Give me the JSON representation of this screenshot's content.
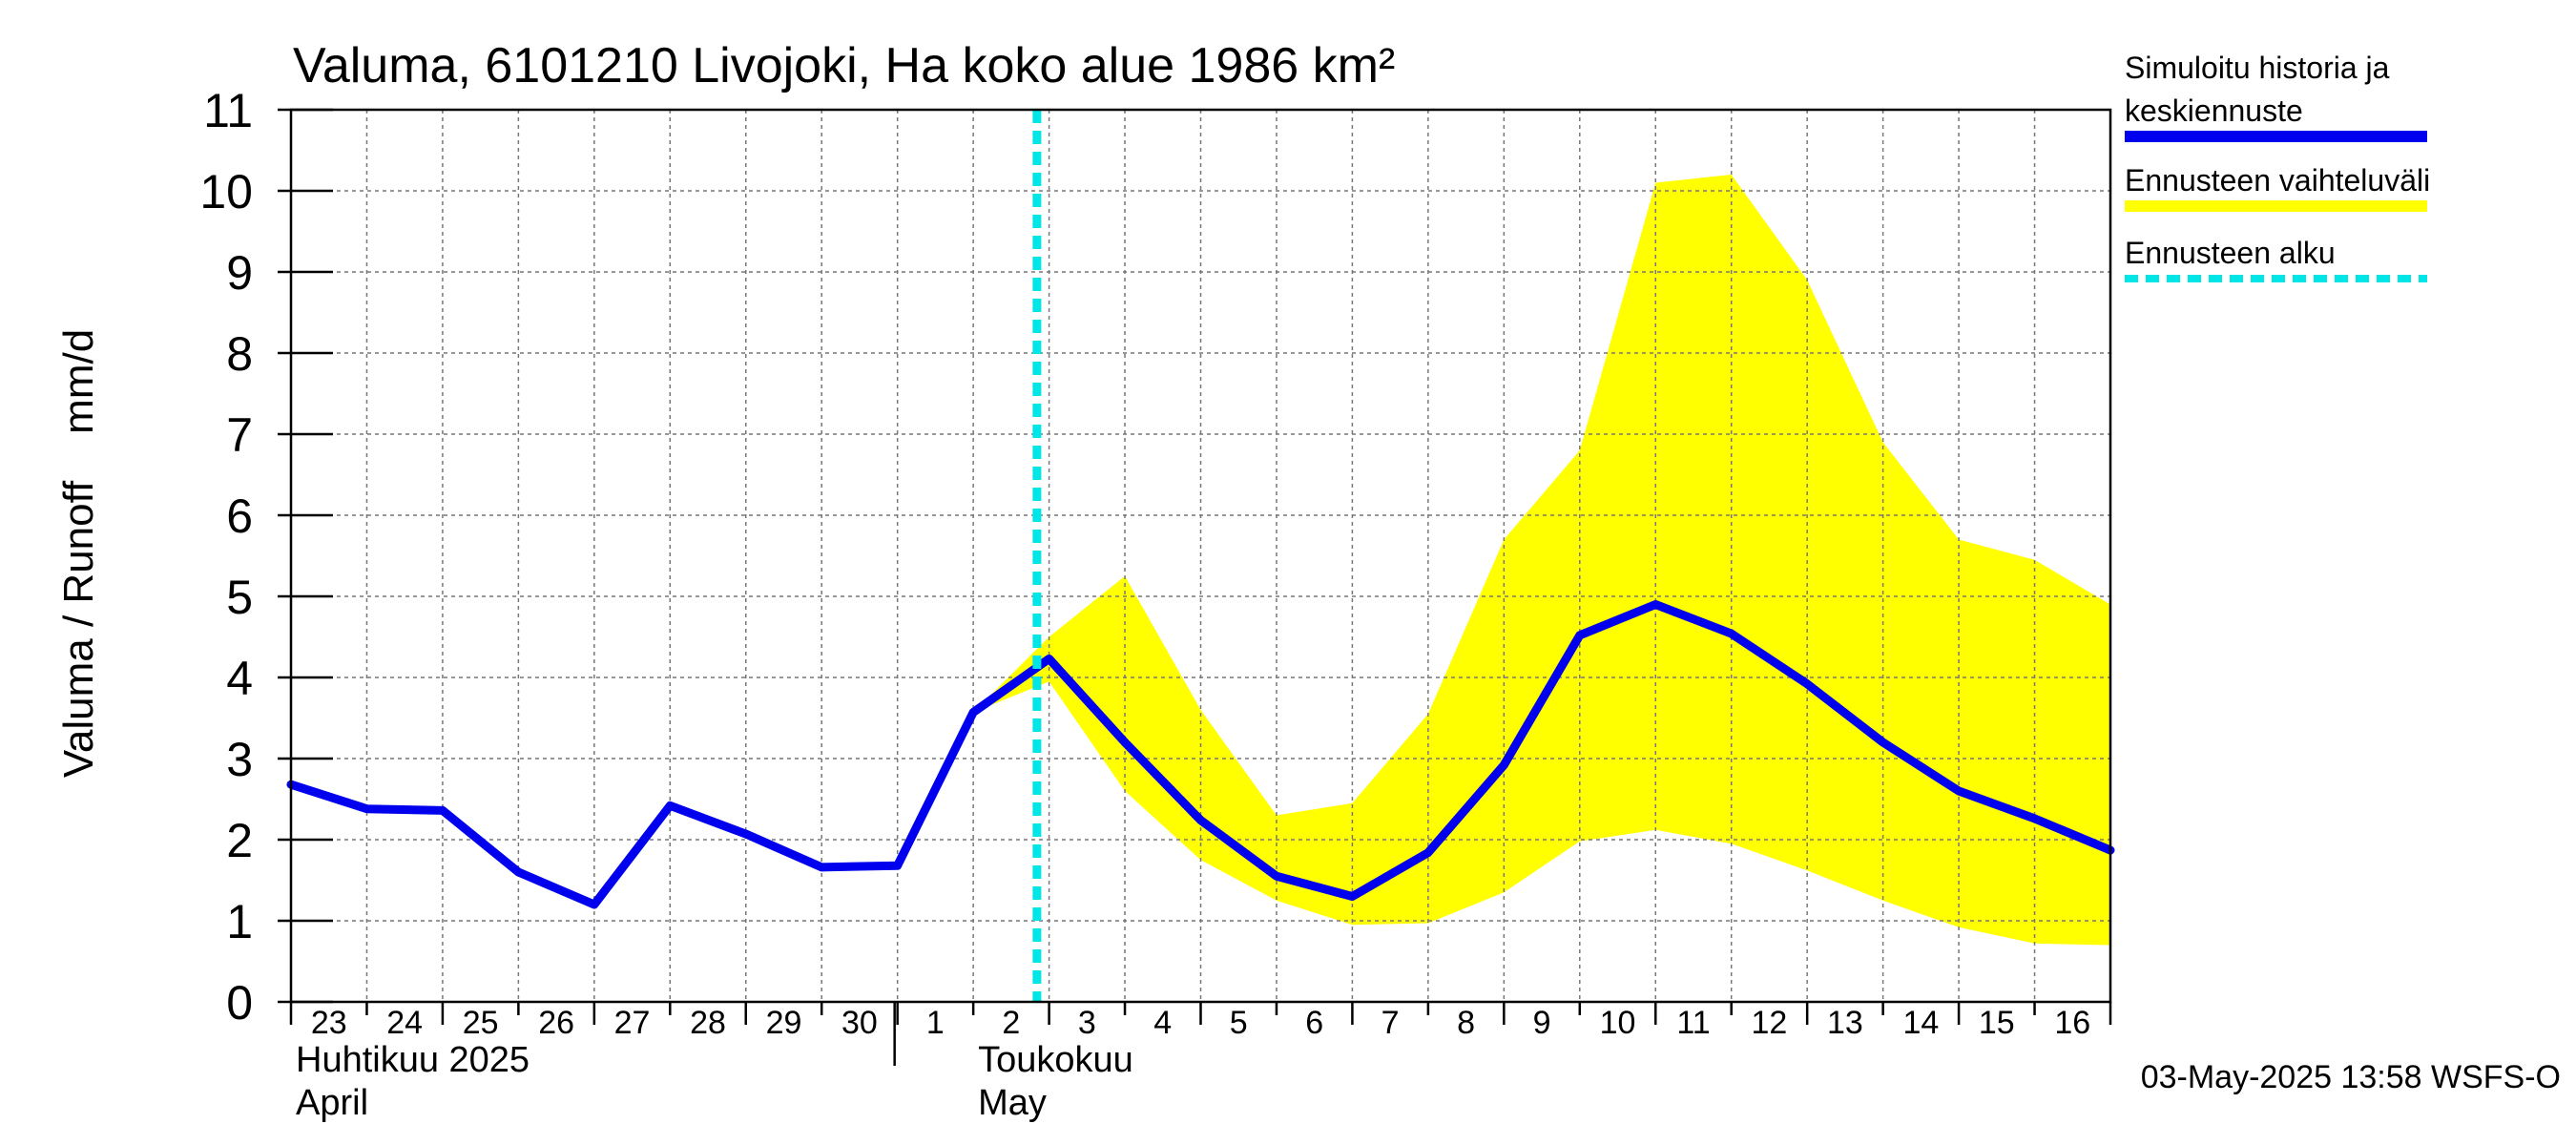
{
  "chart_data": {
    "type": "line",
    "title": "Valuma, 6101210 Livojoki, Ha koko alue 1986 km²",
    "ylabel": "Valuma / Runoff    mm/d",
    "ylim": [
      0,
      11
    ],
    "yticks": [
      "0",
      "1",
      "2",
      "3",
      "4",
      "5",
      "6",
      "7",
      "8",
      "9",
      "10",
      "11"
    ],
    "grid": true,
    "legend_position": "right",
    "x_day_labels": [
      "23",
      "24",
      "25",
      "26",
      "27",
      "28",
      "29",
      "30",
      "1",
      "2",
      "3",
      "4",
      "5",
      "6",
      "7",
      "8",
      "9",
      "10",
      "11",
      "12",
      "13",
      "14",
      "15",
      "16"
    ],
    "month_labels": [
      {
        "line1": "Huhtikuu  2025",
        "line2": "April"
      },
      {
        "line1": "Toukokuu",
        "line2": "May"
      }
    ],
    "forecast_start_day_index": 10,
    "series": [
      {
        "name": "Simuloitu historia ja keskiennuste",
        "color": "#0000ee",
        "values": [
          2.68,
          2.38,
          2.36,
          1.6,
          1.2,
          2.42,
          2.07,
          1.66,
          1.68,
          3.57,
          4.23,
          3.2,
          2.24,
          1.55,
          1.3,
          1.84,
          2.92,
          4.52,
          4.9,
          4.54,
          3.92,
          3.2,
          2.6,
          2.26,
          1.87
        ]
      }
    ],
    "band": {
      "name": "Ennusteen vaihteluväli",
      "color": "#ffff00",
      "start_index": 9,
      "upper": [
        3.57,
        4.5,
        5.25,
        3.6,
        2.3,
        2.45,
        3.55,
        5.7,
        6.8,
        10.1,
        10.2,
        8.9,
        6.9,
        5.7,
        5.45,
        4.9
      ],
      "lower": [
        3.57,
        3.95,
        2.6,
        1.75,
        1.25,
        0.95,
        0.97,
        1.35,
        1.98,
        2.12,
        1.95,
        1.62,
        1.25,
        0.92,
        0.72,
        0.7
      ]
    },
    "legend": [
      {
        "label_line1": "Simuloitu historia ja",
        "label_line2": "keskiennuste",
        "color": "#0000ee",
        "style": "solid"
      },
      {
        "label_line1": "Ennusteen vaihteluväli",
        "label_line2": "",
        "color": "#ffff00",
        "style": "solid"
      },
      {
        "label_line1": "Ennusteen alku",
        "label_line2": "",
        "color": "#00e5e5",
        "style": "dashed"
      }
    ],
    "timestamp": "03-May-2025 13:58 WSFS-O"
  }
}
